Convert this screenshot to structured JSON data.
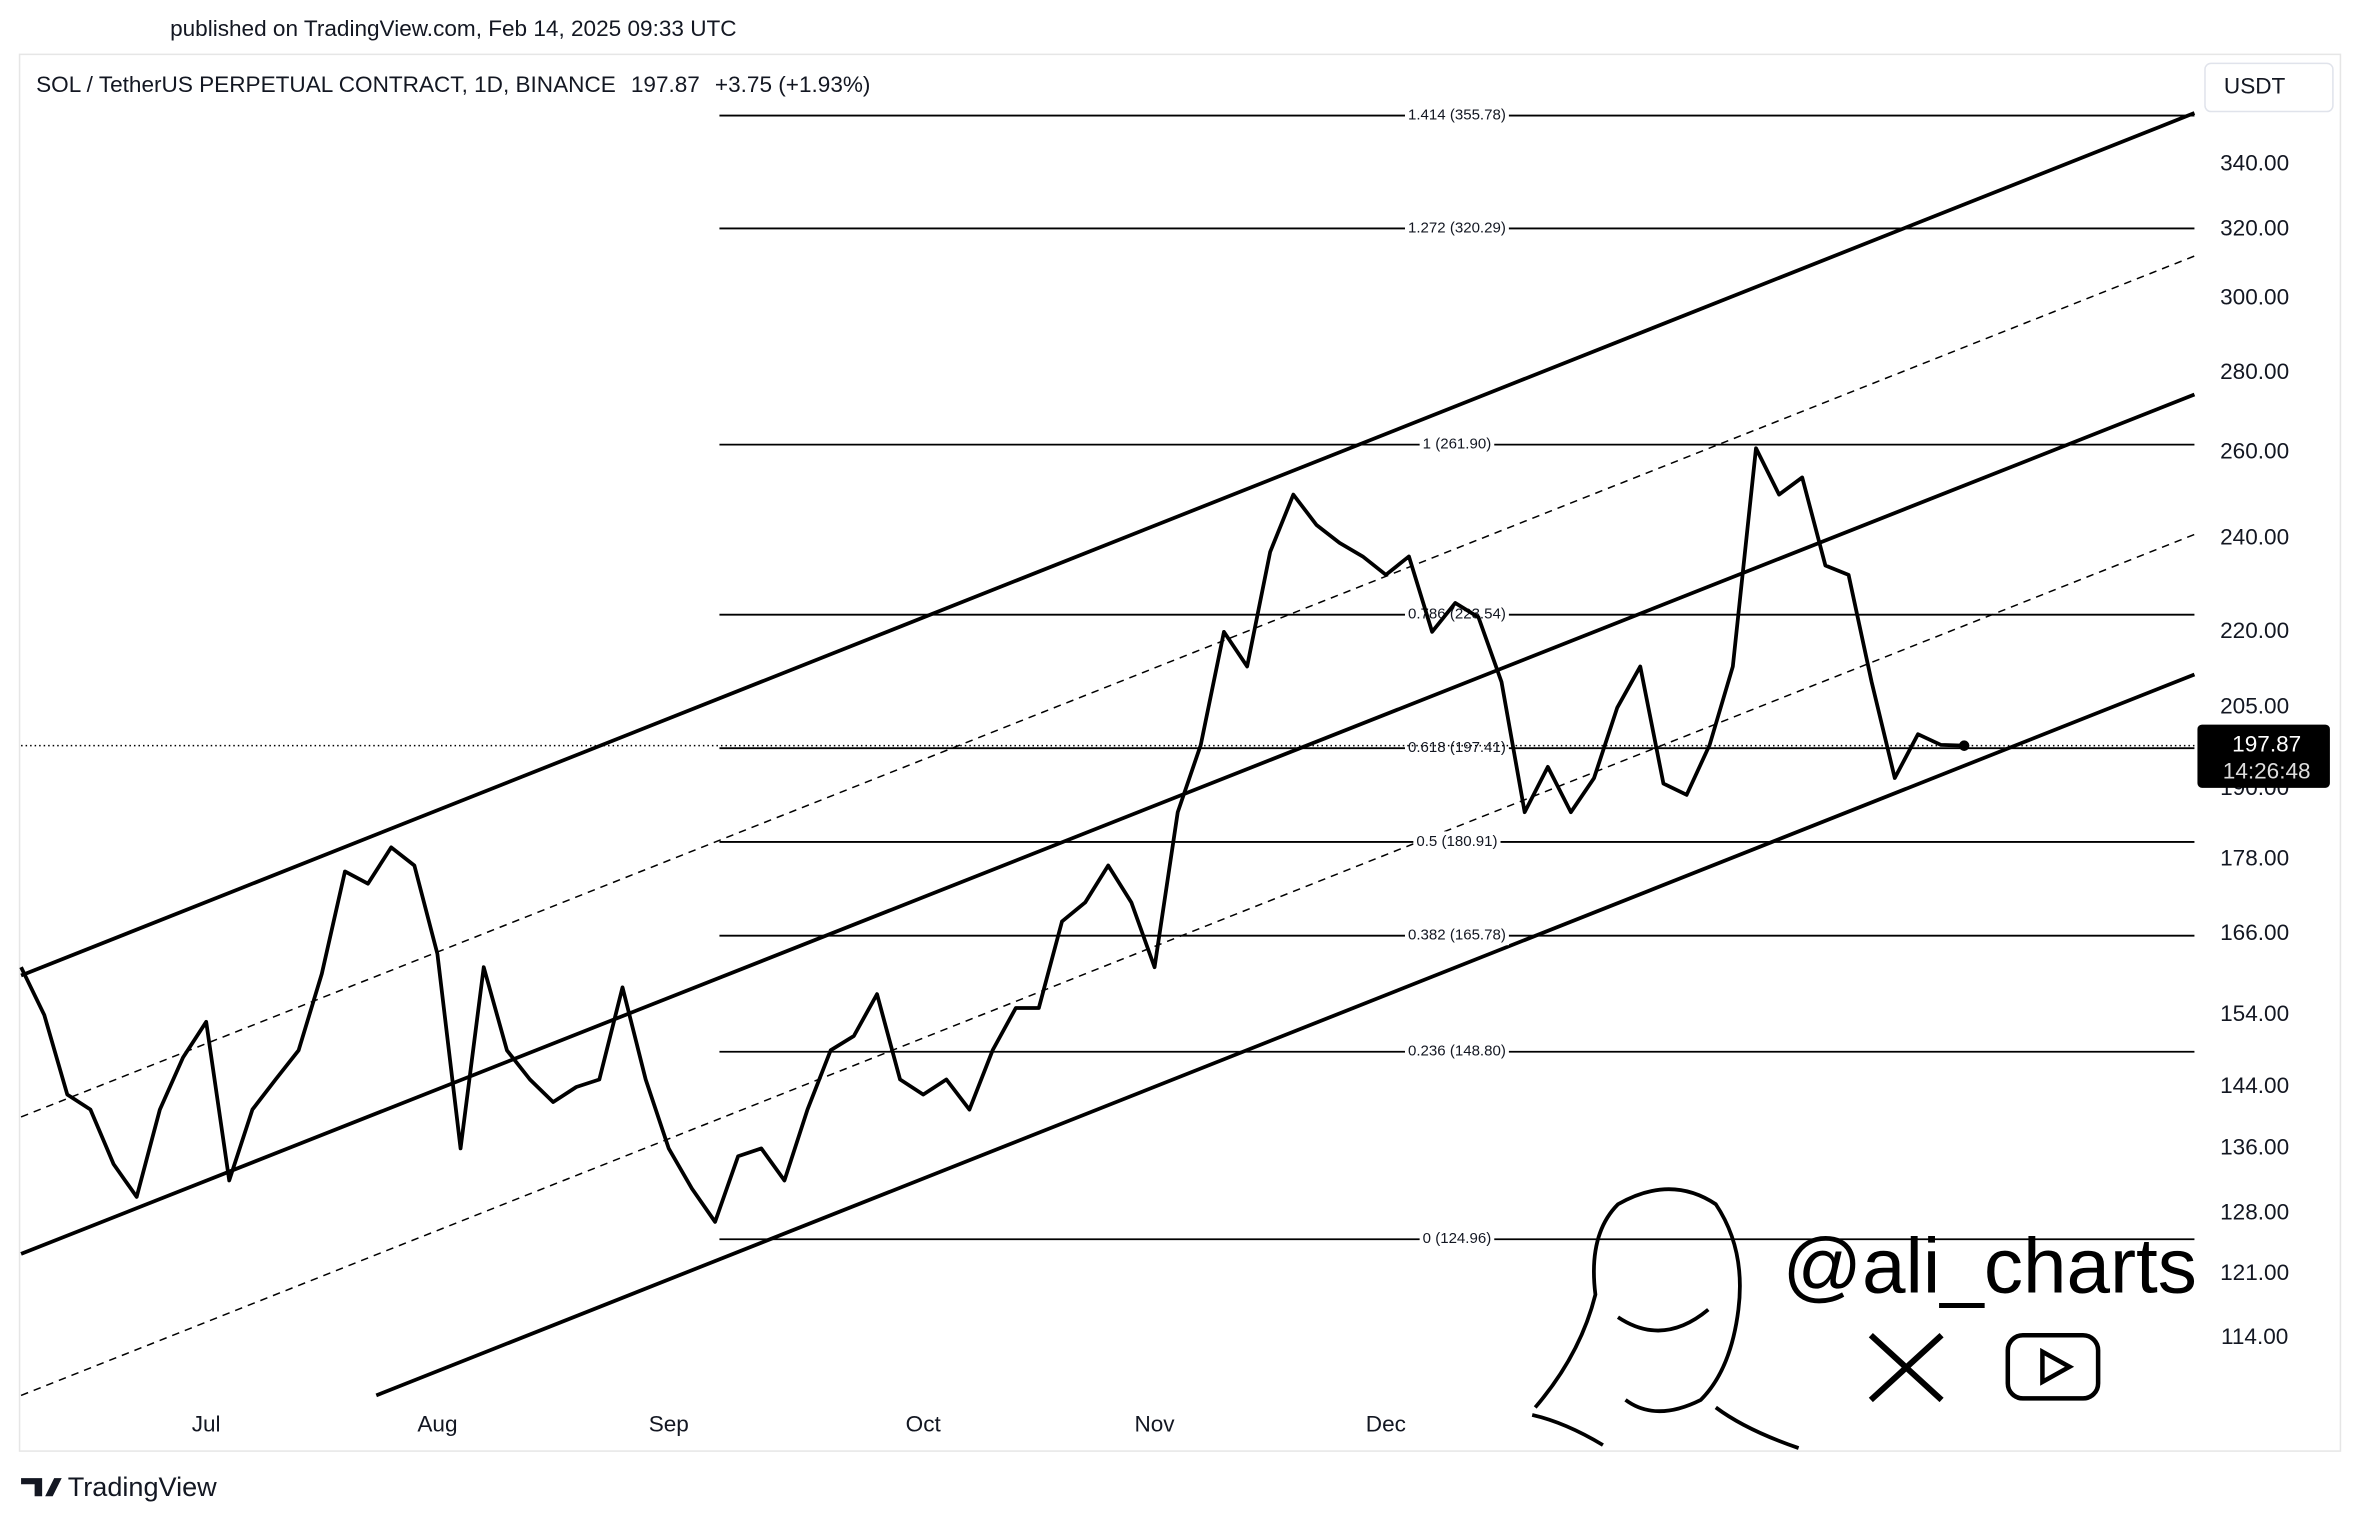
{
  "header": {
    "published": "published on TradingView.com, Feb 14, 2025 09:33 UTC"
  },
  "chart_data": {
    "type": "line",
    "title": "SOL / TetherUS PERPETUAL CONTRACT, 1D, BINANCE",
    "change": "+3.75 (+1.93%)",
    "last_price": 197.87,
    "countdown": "14:26:48",
    "currency": "USDT",
    "log_scale": true,
    "grid": false,
    "color": "#000000",
    "categories": [
      null,
      null,
      null,
      null,
      null,
      null,
      null,
      null,
      "Jul",
      null,
      null,
      null,
      null,
      null,
      null,
      null,
      null,
      null,
      "Aug",
      null,
      null,
      null,
      null,
      null,
      null,
      null,
      null,
      null,
      "Sep",
      null,
      null,
      null,
      null,
      null,
      null,
      null,
      null,
      null,
      null,
      "Oct",
      null,
      null,
      null,
      null,
      null,
      null,
      null,
      null,
      null,
      "Nov",
      null,
      null,
      null,
      null,
      null,
      null,
      null,
      null,
      null,
      "Dec",
      null,
      null,
      null,
      null,
      null,
      null,
      null,
      null,
      null,
      null,
      null,
      null,
      null,
      null,
      null,
      null,
      null,
      null,
      null,
      null,
      null,
      null,
      null,
      null,
      null
    ],
    "values": [
      161,
      154,
      143,
      141,
      134,
      130,
      141,
      148,
      153,
      132,
      141,
      145,
      149,
      160,
      176,
      174,
      180,
      177,
      163,
      136,
      161,
      149,
      145,
      142,
      144,
      145,
      158,
      145,
      136,
      131,
      127,
      135,
      136,
      132,
      141,
      149,
      151,
      157,
      145,
      143,
      145,
      141,
      149,
      155,
      155,
      168,
      171,
      177,
      171,
      161,
      186,
      198,
      220,
      213,
      237,
      250,
      243,
      239,
      236,
      232,
      236,
      220,
      226,
      223,
      210,
      186,
      194,
      186,
      192,
      205,
      213,
      191,
      189,
      198,
      213,
      261,
      250,
      254,
      234,
      232,
      210,
      192,
      200,
      198,
      197.87
    ],
    "ylim": [
      107.6,
      375.6
    ],
    "yticks": [
      {
        "value": 114,
        "label": "114.00"
      },
      {
        "value": 121,
        "label": "121.00"
      },
      {
        "value": 128,
        "label": "128.00"
      },
      {
        "value": 136,
        "label": "136.00"
      },
      {
        "value": 144,
        "label": "144.00"
      },
      {
        "value": 154,
        "label": "154.00"
      },
      {
        "value": 166,
        "label": "166.00"
      },
      {
        "value": 178,
        "label": "178.00"
      },
      {
        "value": 190,
        "label": "190.00"
      },
      {
        "value": 205,
        "label": "205.00"
      },
      {
        "value": 220,
        "label": "220.00"
      },
      {
        "value": 240,
        "label": "240.00"
      },
      {
        "value": 260,
        "label": "260.00"
      },
      {
        "value": 280,
        "label": "280.00"
      },
      {
        "value": 300,
        "label": "300.00"
      },
      {
        "value": 320,
        "label": "320.00"
      },
      {
        "value": 340,
        "label": "340.00"
      }
    ],
    "fib_levels": [
      {
        "label": "1.414 (355.78)",
        "value": 355.78
      },
      {
        "label": "1.272 (320.29)",
        "value": 320.29
      },
      {
        "label": "1 (261.90)",
        "value": 261.9
      },
      {
        "label": "0.786 (223.54)",
        "value": 223.54
      },
      {
        "label": "0.618 (197.41)",
        "value": 197.41
      },
      {
        "label": "0.5 (180.91)",
        "value": 180.91
      },
      {
        "label": "0.382 (165.78)",
        "value": 165.78
      },
      {
        "label": "0.236 (148.80)",
        "value": 148.8
      },
      {
        "label": "0 (124.96)",
        "value": 124.96
      }
    ]
  },
  "footer": {
    "brand": "TradingView",
    "watermark": "@ali_charts"
  }
}
